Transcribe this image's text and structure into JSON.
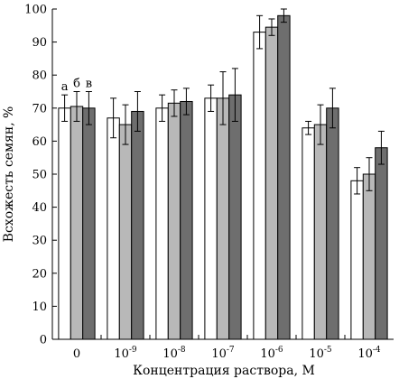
{
  "chart_data": {
    "type": "bar",
    "title": "",
    "xlabel": "Концентрация раствора, М",
    "ylabel": "Всхожесть семян, %",
    "ylim": [
      0,
      100
    ],
    "yticks": [
      0,
      10,
      20,
      30,
      40,
      50,
      60,
      70,
      80,
      90,
      100
    ],
    "categories": [
      {
        "base": "0",
        "exp": ""
      },
      {
        "base": "10",
        "exp": "-9"
      },
      {
        "base": "10",
        "exp": "-8"
      },
      {
        "base": "10",
        "exp": "-7"
      },
      {
        "base": "10",
        "exp": "-6"
      },
      {
        "base": "10",
        "exp": "-5"
      },
      {
        "base": "10",
        "exp": "-4"
      }
    ],
    "series": [
      {
        "name": "а",
        "color": "#ffffff",
        "values": [
          70,
          67,
          70,
          73,
          93,
          64,
          48
        ],
        "errors": [
          4,
          6,
          4,
          4,
          5,
          2,
          4
        ]
      },
      {
        "name": "б",
        "color": "#b8b8b8",
        "values": [
          70.5,
          65,
          71.5,
          73,
          94.5,
          65,
          50
        ],
        "errors": [
          4.5,
          6,
          4,
          8,
          2.5,
          6,
          5
        ]
      },
      {
        "name": "в",
        "color": "#6e6e6e",
        "values": [
          70,
          69,
          72,
          74,
          98,
          70,
          58
        ],
        "errors": [
          5,
          6,
          4,
          8,
          2,
          6,
          5
        ]
      }
    ],
    "series_label_category": 0,
    "grid": false,
    "legend": "none"
  }
}
